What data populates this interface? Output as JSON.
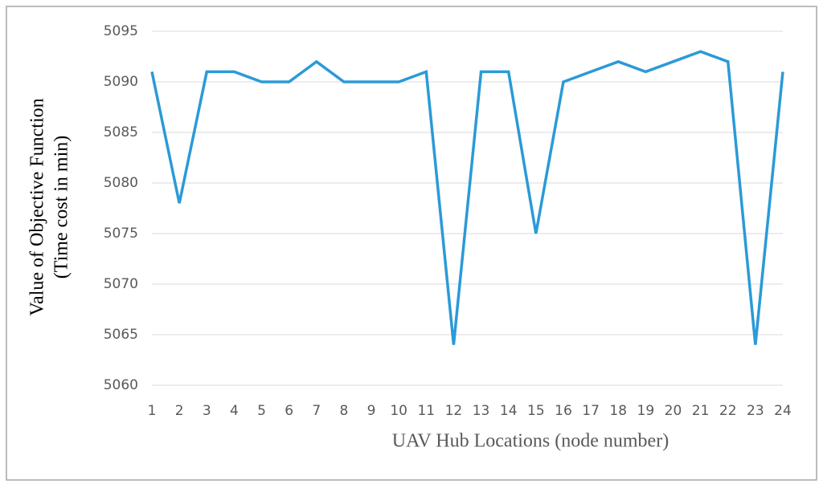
{
  "chart_data": {
    "type": "line",
    "x_label": "UAV Hub Locations (node number)",
    "y_label": [
      "Value of Objective Function",
      "(Time cost in min)"
    ],
    "x": [
      1,
      2,
      3,
      4,
      5,
      6,
      7,
      8,
      9,
      10,
      11,
      12,
      13,
      14,
      15,
      16,
      17,
      18,
      19,
      20,
      21,
      22,
      23,
      24
    ],
    "series": [
      {
        "color": "#2b9ad7",
        "values": [
          5091,
          5078,
          5091,
          5091,
          5090,
          5090,
          5092,
          5090,
          5090,
          5090,
          5091,
          5064,
          5091,
          5091,
          5075,
          5090,
          5091,
          5092,
          5091,
          5092,
          5093,
          5092,
          5064,
          5091
        ]
      }
    ],
    "xlim": [
      1,
      24
    ],
    "ylim": [
      5060,
      5095
    ],
    "yticks": [
      5060,
      5065,
      5070,
      5075,
      5080,
      5085,
      5090,
      5095
    ],
    "grid": true
  }
}
